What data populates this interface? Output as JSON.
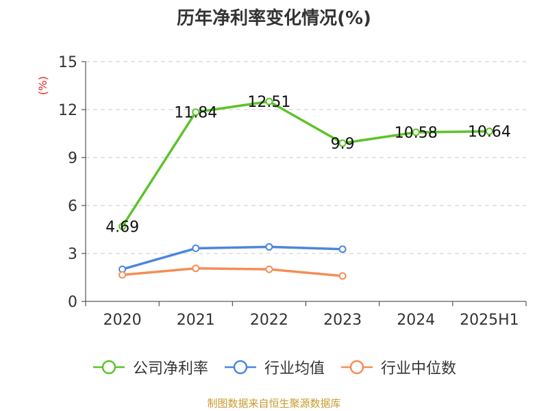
{
  "title": "历年净利率变化情况(%)",
  "source": "制图数据来自恒生聚源数据库",
  "chart_data": {
    "type": "line",
    "title": "历年净利率变化情况(%)",
    "ylabel": "(%)",
    "xlabel": "",
    "ylim": [
      0,
      15
    ],
    "yticks": [
      0,
      3,
      6,
      9,
      12,
      15
    ],
    "categories": [
      "2020",
      "2021",
      "2022",
      "2023",
      "2024",
      "2025H1"
    ],
    "grid": true,
    "legend_position": "bottom",
    "series": [
      {
        "name": "公司净利率",
        "color": "#5cc329",
        "values": [
          4.69,
          11.84,
          12.51,
          9.9,
          10.58,
          10.64
        ],
        "labels": [
          "4.69",
          "11.84",
          "12.51",
          "9.9",
          "10.58",
          "10.64"
        ]
      },
      {
        "name": "行业均值",
        "color": "#4c86dd",
        "values": [
          2.01,
          3.32,
          3.41,
          3.27,
          null,
          null
        ]
      },
      {
        "name": "行业中位数",
        "color": "#f48d57",
        "values": [
          1.66,
          2.07,
          2.01,
          1.59,
          null,
          null
        ]
      }
    ]
  }
}
